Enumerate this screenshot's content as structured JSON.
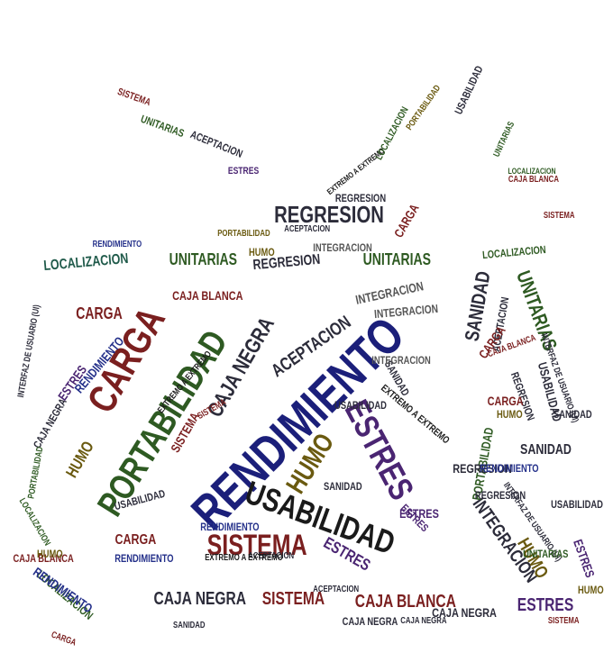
{
  "colors": {
    "darkred": "#7a1f1f",
    "navy": "#1b1f7a",
    "green": "#2e5a22",
    "olive": "#6a5a10",
    "purple": "#4a2572",
    "black": "#1a1a1a",
    "slate": "#2c2c3a",
    "gray": "#555555",
    "blue": "#24308a",
    "teal": "#1f5a4a"
  },
  "words": [
    {
      "text": "RENDIMIENTO",
      "color": "navy"
    },
    {
      "text": "CARGA",
      "color": "darkred"
    },
    {
      "text": "PORTABILIDAD",
      "color": "green"
    },
    {
      "text": "USABILIDAD",
      "color": "black"
    },
    {
      "text": "ESTRES",
      "color": "purple"
    },
    {
      "text": "SISTEMA",
      "color": "darkred"
    },
    {
      "text": "REGRESION",
      "color": "slate"
    },
    {
      "text": "HUMO",
      "color": "olive"
    },
    {
      "text": "CAJA NEGRA",
      "color": "slate"
    },
    {
      "text": "ACEPTACION",
      "color": "slate"
    },
    {
      "text": "UNITARIAS",
      "color": "green"
    },
    {
      "text": "UNITARIAS",
      "color": "green"
    },
    {
      "text": "UNITARIAS",
      "color": "green"
    },
    {
      "text": "SANIDAD",
      "color": "slate"
    },
    {
      "text": "INTEGRACION",
      "color": "gray"
    },
    {
      "text": "INTEGRACION",
      "color": "slate"
    },
    {
      "text": "CAJA BLANCA",
      "color": "darkred"
    },
    {
      "text": "CAJA BLANCA",
      "color": "darkred"
    },
    {
      "text": "CAJA NEGRA",
      "color": "slate"
    },
    {
      "text": "SISTEMA",
      "color": "darkred"
    },
    {
      "text": "ESTRES",
      "color": "purple"
    },
    {
      "text": "LOCALIZACION",
      "color": "teal"
    },
    {
      "text": "LOCALIZACION",
      "color": "green"
    },
    {
      "text": "RENDIMIENTO",
      "color": "blue"
    },
    {
      "text": "CARGA",
      "color": "darkred"
    },
    {
      "text": "CARGA",
      "color": "darkred"
    },
    {
      "text": "HUMO",
      "color": "olive"
    },
    {
      "text": "HUMO",
      "color": "olive"
    },
    {
      "text": "SANIDAD",
      "color": "slate"
    },
    {
      "text": "USABILIDAD",
      "color": "slate"
    },
    {
      "text": "REGRESION",
      "color": "slate"
    },
    {
      "text": "PORTABILIDAD",
      "color": "green"
    },
    {
      "text": "ACEPTACION",
      "color": "slate"
    },
    {
      "text": "CAJA NEGRA",
      "color": "slate"
    },
    {
      "text": "SISTEMA",
      "color": "darkred"
    },
    {
      "text": "ESTRES",
      "color": "purple"
    },
    {
      "text": "ESTRES",
      "color": "purple"
    },
    {
      "text": "RENDIMIENTO",
      "color": "blue"
    },
    {
      "text": "EXTREMO A EXTREMO",
      "color": "black"
    },
    {
      "text": "EXTREMO A EXTREMO",
      "color": "black"
    },
    {
      "text": "INTERFAZ DE USUARIO (UI)",
      "color": "slate"
    },
    {
      "text": "INTERFAZ DE USUARIO (UI)",
      "color": "slate"
    },
    {
      "text": "SANIDAD",
      "color": "slate"
    },
    {
      "text": "CAJA BLANCA",
      "color": "darkred"
    },
    {
      "text": "REGRESION",
      "color": "slate"
    },
    {
      "text": "HUMO",
      "color": "olive"
    },
    {
      "text": "ACEPTACION",
      "color": "slate"
    },
    {
      "text": "LOCALIZACION",
      "color": "green"
    },
    {
      "text": "RENDIMIENTO",
      "color": "blue"
    },
    {
      "text": "INTEGRACION",
      "color": "gray"
    },
    {
      "text": "SISTEMA",
      "color": "darkred"
    },
    {
      "text": "CARGA",
      "color": "darkred"
    },
    {
      "text": "ESTRES",
      "color": "purple"
    },
    {
      "text": "UNITARIAS",
      "color": "green"
    },
    {
      "text": "USABILIDAD",
      "color": "slate"
    },
    {
      "text": "PORTABILIDAD",
      "color": "olive"
    },
    {
      "text": "LOCALIZACION",
      "color": "green"
    },
    {
      "text": "ACEPTACION",
      "color": "slate"
    },
    {
      "text": "USABILIDAD",
      "color": "slate"
    },
    {
      "text": "SANIDAD",
      "color": "slate"
    },
    {
      "text": "REGRESION",
      "color": "slate"
    },
    {
      "text": "CAJA NEGRA",
      "color": "slate"
    },
    {
      "text": "CAJA BLANCA",
      "color": "darkred"
    },
    {
      "text": "EXTREMO A EXTREMO",
      "color": "black"
    },
    {
      "text": "SISTEMA",
      "color": "darkred"
    },
    {
      "text": "ESTRES",
      "color": "purple"
    },
    {
      "text": "RENDIMIENTO",
      "color": "blue"
    },
    {
      "text": "HUMO",
      "color": "olive"
    },
    {
      "text": "CARGA",
      "color": "darkred"
    },
    {
      "text": "INTEGRACION",
      "color": "gray"
    },
    {
      "text": "PORTABILIDAD",
      "color": "green"
    },
    {
      "text": "UNITARIAS",
      "color": "green"
    },
    {
      "text": "SANIDAD",
      "color": "slate"
    },
    {
      "text": "LOCALIZACION",
      "color": "green"
    },
    {
      "text": "ACEPTACION",
      "color": "slate"
    },
    {
      "text": "USABILIDAD",
      "color": "slate"
    },
    {
      "text": "REGRESION",
      "color": "slate"
    },
    {
      "text": "CAJA NEGRA",
      "color": "slate"
    },
    {
      "text": "SISTEMA",
      "color": "darkred"
    },
    {
      "text": "ESTRES",
      "color": "purple"
    },
    {
      "text": "CARGA",
      "color": "darkred"
    },
    {
      "text": "RENDIMIENTO",
      "color": "blue"
    },
    {
      "text": "HUMO",
      "color": "olive"
    },
    {
      "text": "CAJA BLANCA",
      "color": "darkred"
    },
    {
      "text": "EXTREMO A EXTREMO",
      "color": "black"
    },
    {
      "text": "INTERFAZ DE USUARIO (UI)",
      "color": "slate"
    },
    {
      "text": "PORTABILIDAD",
      "color": "olive"
    },
    {
      "text": "INTEGRACION",
      "color": "gray"
    },
    {
      "text": "SANIDAD",
      "color": "slate"
    },
    {
      "text": "ESTRES",
      "color": "purple"
    },
    {
      "text": "CARGA",
      "color": "darkred"
    },
    {
      "text": "LOCALIZACION",
      "color": "green"
    },
    {
      "text": "USABILIDAD",
      "color": "slate"
    },
    {
      "text": "REGRESION",
      "color": "slate"
    },
    {
      "text": "ACEPTACION",
      "color": "slate"
    },
    {
      "text": "HUMO",
      "color": "olive"
    },
    {
      "text": "SISTEMA",
      "color": "darkred"
    },
    {
      "text": "RENDIMIENTO",
      "color": "blue"
    },
    {
      "text": "UNITARIAS",
      "color": "green"
    },
    {
      "text": "CAJA NEGRA",
      "color": "slate"
    }
  ]
}
